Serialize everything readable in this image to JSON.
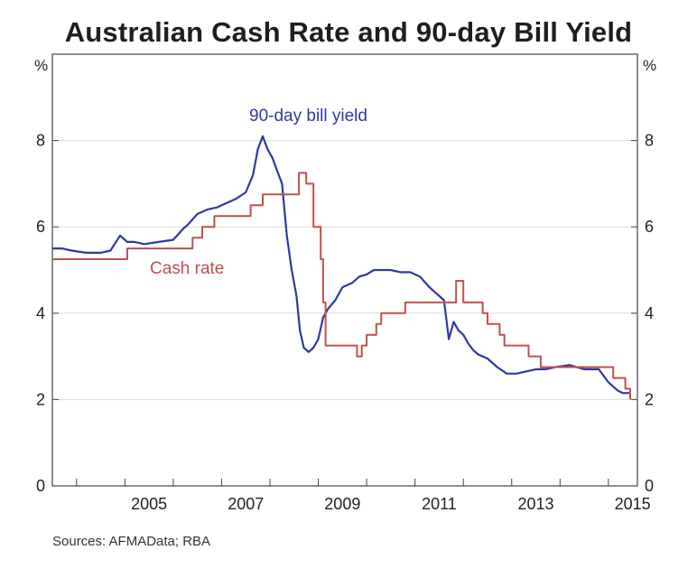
{
  "chart_data": {
    "type": "line",
    "title": "Australian Cash Rate and 90-day Bill Yield",
    "source": "Sources:  AFMAData; RBA",
    "y_unit": "%",
    "ylim": [
      0,
      10
    ],
    "yticks": [
      0,
      2,
      4,
      6,
      8
    ],
    "xlim": [
      2003.5,
      2015.6
    ],
    "xticks": [
      2005,
      2007,
      2009,
      2011,
      2013,
      2015
    ],
    "grid": true,
    "colors": {
      "cash_rate": "#c0504d",
      "bill_yield": "#2e3a9e",
      "grid": "#d9d9d9",
      "axis": "#444444"
    },
    "series": [
      {
        "name": "90-day bill yield",
        "key": "bill_yield",
        "x": [
          2003.5,
          2003.7,
          2003.9,
          2004.2,
          2004.5,
          2004.7,
          2004.9,
          2005.0,
          2005.05,
          2005.2,
          2005.4,
          2005.7,
          2006.0,
          2006.2,
          2006.3,
          2006.5,
          2006.7,
          2006.9,
          2007.1,
          2007.3,
          2007.5,
          2007.65,
          2007.75,
          2007.85,
          2007.95,
          2008.05,
          2008.15,
          2008.25,
          2008.35,
          2008.45,
          2008.55,
          2008.62,
          2008.7,
          2008.8,
          2008.9,
          2009.0,
          2009.1,
          2009.2,
          2009.35,
          2009.5,
          2009.7,
          2009.85,
          2010.0,
          2010.15,
          2010.3,
          2010.5,
          2010.7,
          2010.9,
          2011.1,
          2011.3,
          2011.45,
          2011.6,
          2011.7,
          2011.8,
          2011.9,
          2012.0,
          2012.1,
          2012.2,
          2012.3,
          2012.5,
          2012.7,
          2012.9,
          2013.1,
          2013.3,
          2013.5,
          2013.7,
          2013.9,
          2014.2,
          2014.5,
          2014.8,
          2015.0,
          2015.1,
          2015.2,
          2015.3,
          2015.45
        ],
        "values": [
          5.5,
          5.5,
          5.45,
          5.4,
          5.4,
          5.45,
          5.8,
          5.7,
          5.65,
          5.65,
          5.6,
          5.65,
          5.7,
          5.95,
          6.05,
          6.3,
          6.4,
          6.45,
          6.55,
          6.65,
          6.8,
          7.2,
          7.8,
          8.1,
          7.8,
          7.6,
          7.3,
          7.0,
          5.8,
          5.0,
          4.4,
          3.6,
          3.2,
          3.1,
          3.2,
          3.4,
          3.9,
          4.1,
          4.3,
          4.6,
          4.7,
          4.85,
          4.9,
          5.0,
          5.0,
          5.0,
          4.95,
          4.95,
          4.85,
          4.6,
          4.45,
          4.3,
          3.4,
          3.8,
          3.6,
          3.5,
          3.3,
          3.15,
          3.05,
          2.95,
          2.75,
          2.6,
          2.6,
          2.65,
          2.7,
          2.7,
          2.75,
          2.8,
          2.7,
          2.7,
          2.4,
          2.3,
          2.2,
          2.15,
          2.15
        ]
      },
      {
        "name": "Cash rate",
        "key": "cash_rate",
        "step": true,
        "x": [
          2003.5,
          2005.05,
          2006.4,
          2006.6,
          2006.85,
          2007.6,
          2007.85,
          2008.6,
          2008.75,
          2008.9,
          2009.05,
          2009.1,
          2009.15,
          2009.8,
          2009.9,
          2010.0,
          2010.2,
          2010.3,
          2010.8,
          2011.85,
          2012.0,
          2012.4,
          2012.5,
          2012.75,
          2012.85,
          2013.35,
          2013.6,
          2015.1,
          2015.35,
          2015.45
        ],
        "values": [
          5.25,
          5.5,
          5.75,
          6.0,
          6.25,
          6.5,
          6.75,
          7.25,
          7.0,
          6.0,
          5.25,
          4.25,
          3.25,
          3.0,
          3.25,
          3.5,
          3.75,
          4.0,
          4.25,
          4.75,
          4.25,
          4.0,
          3.75,
          3.5,
          3.25,
          3.0,
          2.75,
          2.5,
          2.25,
          2.0
        ]
      }
    ],
    "annotations": [
      {
        "text": "90-day bill yield",
        "series": "bill_yield"
      },
      {
        "text": "Cash rate",
        "series": "cash_rate"
      }
    ]
  }
}
